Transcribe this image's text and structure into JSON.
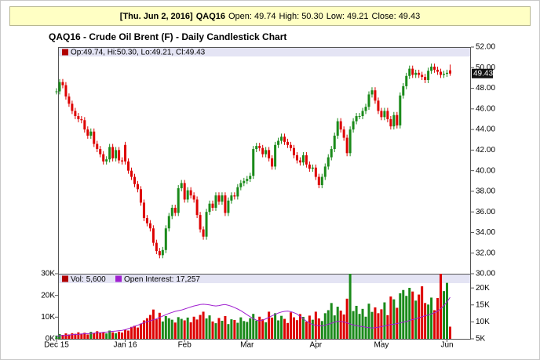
{
  "header": {
    "date": "[Thu. Jun 2, 2016]",
    "symbol": "QAQ16",
    "fields": [
      {
        "label": "Open:",
        "value": "49.74"
      },
      {
        "label": "High:",
        "value": "50.30"
      },
      {
        "label": "Low:",
        "value": "49.21"
      },
      {
        "label": "Close:",
        "value": "49.43"
      }
    ]
  },
  "chart_data": {
    "type": "candlestick",
    "title": "QAQ16 - Crude Oil Brent (F) - Daily Candlestick Chart",
    "ohlc_legend": "Op:49.74, Hi:50.30, Lo:49.21, Cl:49.43",
    "last_label": "49.43",
    "legend_color": "#b00000",
    "up_color": "#1a8a1a",
    "down_color": "#dd0000",
    "categories": [
      "Dec 15",
      null,
      null,
      null,
      null,
      null,
      null,
      null,
      null,
      null,
      null,
      null,
      null,
      null,
      null,
      null,
      null,
      null,
      null,
      null,
      null,
      null,
      "Jan 16",
      null,
      null,
      null,
      null,
      null,
      null,
      null,
      null,
      null,
      null,
      null,
      null,
      null,
      null,
      null,
      null,
      null,
      null,
      "Feb",
      null,
      null,
      null,
      null,
      null,
      null,
      null,
      null,
      null,
      null,
      null,
      null,
      null,
      null,
      null,
      null,
      null,
      null,
      null,
      "Mar",
      null,
      null,
      null,
      null,
      null,
      null,
      null,
      null,
      null,
      null,
      null,
      null,
      null,
      null,
      null,
      null,
      null,
      null,
      null,
      null,
      null,
      "Apr",
      null,
      null,
      null,
      null,
      null,
      null,
      null,
      null,
      null,
      null,
      null,
      null,
      null,
      null,
      null,
      null,
      null,
      null,
      null,
      null,
      "May",
      null,
      null,
      null,
      null,
      null,
      null,
      null,
      null,
      null,
      null,
      null,
      null,
      null,
      null,
      null,
      null,
      null,
      null,
      null,
      null,
      "Jun",
      null
    ],
    "open": [
      47.7,
      47.7,
      48.6,
      48.3,
      47.2,
      46.5,
      45.8,
      45.3,
      45.0,
      44.9,
      44.0,
      43.4,
      43.8,
      42.6,
      42.1,
      41.6,
      40.9,
      41.1,
      42.3,
      41.2,
      42.0,
      41.0,
      42.5,
      40.9,
      40.0,
      39.4,
      38.7,
      38.2,
      36.9,
      35.4,
      34.9,
      34.4,
      33.0,
      32.2,
      31.8,
      32.3,
      34.4,
      35.6,
      36.4,
      35.9,
      38.3,
      38.8,
      37.2,
      38.1,
      37.6,
      37.2,
      35.7,
      34.3,
      33.6,
      36.0,
      36.8,
      36.4,
      37.6,
      37.0,
      37.6,
      35.9,
      37.1,
      37.6,
      37.5,
      38.4,
      38.8,
      39.0,
      39.2,
      39.5,
      42.1,
      42.4,
      42.2,
      41.6,
      42.0,
      41.2,
      40.4,
      42.5,
      42.9,
      43.3,
      42.8,
      42.5,
      42.2,
      41.5,
      41.0,
      40.8,
      41.5,
      40.6,
      40.2,
      40.3,
      39.4,
      38.6,
      39.4,
      40.4,
      41.3,
      42.1,
      43.4,
      44.8,
      44.0,
      43.2,
      41.7,
      44.0,
      44.8,
      45.3,
      45.3,
      45.8,
      46.2,
      47.4,
      47.8,
      46.8,
      45.8,
      45.2,
      45.8,
      45.0,
      44.3,
      45.4,
      44.4,
      47.3,
      48.2,
      49.2,
      49.9,
      49.3,
      49.5,
      49.3,
      49.1,
      48.8,
      49.7,
      50.1,
      49.8,
      49.6,
      49.3,
      49.4,
      49.74
    ],
    "high": [
      48.0,
      48.9,
      48.9,
      48.6,
      47.5,
      46.8,
      46.1,
      45.6,
      45.3,
      45.2,
      44.3,
      44.1,
      44.1,
      42.9,
      42.4,
      41.9,
      41.4,
      42.6,
      42.6,
      42.3,
      42.3,
      41.3,
      42.8,
      41.2,
      40.3,
      39.7,
      39.0,
      38.5,
      37.2,
      35.7,
      35.2,
      34.7,
      33.3,
      32.5,
      32.6,
      34.7,
      35.9,
      36.7,
      36.7,
      38.6,
      39.1,
      39.1,
      38.4,
      38.4,
      37.9,
      37.5,
      36.0,
      34.6,
      36.3,
      37.1,
      37.1,
      37.9,
      37.9,
      37.9,
      37.9,
      37.4,
      37.9,
      37.9,
      38.7,
      39.1,
      39.3,
      39.5,
      39.8,
      42.4,
      42.7,
      42.7,
      42.5,
      42.3,
      42.3,
      41.5,
      42.8,
      43.2,
      43.6,
      43.6,
      43.1,
      42.8,
      42.5,
      41.8,
      41.3,
      41.8,
      41.8,
      40.9,
      40.6,
      40.6,
      39.7,
      39.7,
      40.7,
      41.6,
      42.4,
      43.7,
      45.1,
      45.1,
      44.3,
      43.5,
      44.3,
      45.1,
      45.6,
      45.6,
      46.1,
      46.5,
      47.7,
      48.1,
      48.1,
      47.1,
      46.1,
      46.1,
      46.1,
      45.3,
      45.7,
      45.7,
      47.6,
      48.5,
      49.5,
      50.2,
      50.2,
      49.8,
      49.8,
      49.6,
      49.4,
      50.0,
      50.4,
      50.4,
      50.1,
      49.9,
      49.7,
      49.8,
      50.3
    ],
    "low": [
      47.4,
      47.4,
      48.0,
      46.9,
      46.2,
      45.5,
      45.0,
      44.7,
      44.6,
      43.7,
      43.1,
      43.1,
      42.3,
      41.8,
      41.3,
      40.6,
      40.6,
      40.8,
      40.9,
      40.9,
      40.7,
      40.6,
      40.6,
      39.7,
      39.1,
      38.4,
      37.9,
      36.6,
      35.1,
      34.6,
      34.1,
      32.7,
      31.9,
      31.5,
      31.5,
      32.0,
      34.1,
      35.3,
      35.6,
      35.6,
      38.0,
      36.9,
      36.9,
      37.3,
      36.9,
      35.4,
      34.0,
      33.3,
      33.3,
      35.7,
      36.1,
      36.1,
      36.7,
      36.7,
      35.6,
      35.6,
      36.8,
      37.2,
      37.2,
      38.1,
      38.5,
      38.7,
      38.9,
      39.2,
      41.8,
      41.9,
      41.3,
      41.3,
      40.9,
      40.1,
      40.1,
      42.2,
      42.6,
      42.5,
      42.2,
      41.9,
      41.2,
      40.7,
      40.5,
      40.5,
      40.3,
      39.9,
      39.9,
      39.1,
      38.3,
      38.3,
      39.1,
      40.1,
      41.0,
      41.8,
      43.1,
      43.7,
      42.9,
      41.4,
      41.4,
      43.7,
      44.5,
      45.0,
      45.0,
      45.5,
      45.9,
      47.1,
      46.5,
      45.5,
      44.9,
      44.9,
      44.7,
      44.0,
      44.0,
      44.1,
      44.1,
      47.0,
      47.9,
      48.9,
      49.0,
      49.0,
      49.0,
      48.8,
      48.5,
      48.5,
      49.4,
      49.5,
      49.3,
      49.0,
      49.0,
      49.1,
      49.21
    ],
    "close": [
      47.7,
      48.6,
      48.3,
      47.2,
      46.5,
      45.8,
      45.3,
      45.0,
      44.9,
      44.0,
      43.4,
      43.8,
      42.6,
      42.1,
      41.6,
      40.9,
      41.1,
      42.3,
      41.2,
      42.0,
      41.0,
      40.9,
      40.9,
      40.0,
      39.4,
      38.7,
      38.2,
      36.9,
      35.4,
      34.9,
      34.4,
      33.0,
      32.2,
      31.8,
      32.3,
      34.4,
      35.6,
      36.4,
      35.9,
      38.3,
      38.8,
      37.2,
      38.1,
      37.6,
      37.2,
      35.7,
      34.3,
      33.6,
      36.0,
      36.8,
      36.4,
      37.6,
      37.0,
      37.6,
      35.9,
      37.1,
      37.6,
      37.5,
      38.4,
      38.8,
      39.0,
      39.2,
      39.5,
      42.1,
      42.4,
      42.2,
      41.6,
      42.0,
      41.2,
      40.4,
      42.5,
      42.9,
      43.3,
      42.8,
      42.5,
      42.2,
      41.5,
      41.0,
      40.8,
      41.5,
      40.6,
      40.2,
      40.3,
      39.4,
      38.6,
      39.4,
      40.4,
      41.3,
      42.1,
      43.4,
      44.8,
      44.0,
      43.2,
      41.7,
      44.0,
      44.8,
      45.3,
      45.3,
      45.8,
      46.2,
      47.4,
      47.8,
      46.8,
      45.8,
      45.2,
      45.8,
      45.0,
      44.3,
      45.4,
      44.4,
      47.3,
      48.2,
      49.2,
      49.9,
      49.3,
      49.5,
      49.3,
      49.1,
      48.8,
      49.7,
      50.1,
      49.8,
      49.6,
      49.3,
      49.4,
      49.5,
      49.43
    ],
    "ylim": [
      30,
      52
    ],
    "yticks": [
      {
        "value": 30,
        "label": "30.00"
      },
      {
        "value": 32,
        "label": "32.00"
      },
      {
        "value": 34,
        "label": "34.00"
      },
      {
        "value": 36,
        "label": "36.00"
      },
      {
        "value": 38,
        "label": "38.00"
      },
      {
        "value": 40,
        "label": "40.00"
      },
      {
        "value": 42,
        "label": "42.00"
      },
      {
        "value": 44,
        "label": "44.00"
      },
      {
        "value": 46,
        "label": "46.00"
      },
      {
        "value": 48,
        "label": "48.00"
      },
      {
        "value": 50,
        "label": "50.00"
      },
      {
        "value": 52,
        "label": "52.00"
      }
    ],
    "volume": {
      "name": "Vol:",
      "legend_value": "5,600",
      "color": "#b00000",
      "values": [
        1500,
        2200,
        1800,
        2500,
        2000,
        2600,
        2300,
        3000,
        2400,
        2800,
        2000,
        3200,
        2700,
        3500,
        2900,
        3100,
        2500,
        3800,
        3000,
        2600,
        3300,
        2900,
        4200,
        3800,
        5500,
        6000,
        5200,
        7000,
        8500,
        9500,
        11000,
        13500,
        9000,
        12000,
        8000,
        10500,
        9500,
        8800,
        7500,
        10000,
        9200,
        8500,
        9800,
        7600,
        10200,
        8900,
        11000,
        12500,
        9400,
        10800,
        8000,
        7200,
        9600,
        8300,
        10500,
        6800,
        9000,
        8700,
        7400,
        9900,
        8200,
        7800,
        9500,
        11500,
        8400,
        10200,
        9000,
        7600,
        12500,
        9800,
        11800,
        8500,
        10600,
        9200,
        7300,
        12200,
        9900,
        8600,
        11400,
        10100,
        7900,
        10700,
        8800,
        12500,
        9400,
        8200,
        11800,
        13200,
        16500,
        10800,
        14800,
        13000,
        11200,
        18500,
        30000,
        12800,
        15200,
        11500,
        13800,
        10200,
        16200,
        12400,
        14500,
        11800,
        13600,
        16800,
        10900,
        19500,
        18200,
        14300,
        21000,
        22500,
        19800,
        23500,
        21800,
        17600,
        20400,
        24200,
        16500,
        15800,
        19000,
        13200,
        18800,
        30000,
        22000,
        25800,
        5600
      ],
      "ylim": [
        0,
        30000
      ],
      "yticks": [
        {
          "value": 0,
          "label": "0K"
        },
        {
          "value": 10000,
          "label": "10K"
        },
        {
          "value": 20000,
          "label": "20K"
        },
        {
          "value": 30000,
          "label": "30K"
        }
      ]
    },
    "open_interest": {
      "name": "Open Interest:",
      "legend_value": "17,257",
      "color": "#a020d0",
      "axis": "y2",
      "values": [
        5800,
        5900,
        6000,
        6000,
        6100,
        6200,
        6300,
        6300,
        6400,
        6500,
        6500,
        6600,
        6700,
        6800,
        6800,
        6900,
        7000,
        7100,
        7200,
        7300,
        7400,
        7500,
        7700,
        8000,
        8300,
        8700,
        9000,
        9400,
        9800,
        10100,
        10300,
        10600,
        10900,
        11300,
        11700,
        12100,
        12500,
        12800,
        13100,
        13300,
        13500,
        13800,
        14100,
        14400,
        14700,
        14900,
        15100,
        15200,
        15100,
        15000,
        14800,
        14700,
        14800,
        15000,
        15100,
        14900,
        14600,
        14200,
        13800,
        13300,
        12700,
        12100,
        11500,
        11000,
        10500,
        10300,
        10500,
        10900,
        11300,
        11800,
        12200,
        12600,
        12900,
        13100,
        13200,
        13000,
        12700,
        12300,
        11600,
        10900,
        10200,
        9600,
        9200,
        9000,
        8900,
        8800,
        9000,
        9300,
        9600,
        9900,
        10200,
        10100,
        10000,
        9700,
        9400,
        9100,
        8900,
        8700,
        8600,
        8400,
        8300,
        8200,
        8300,
        8400,
        8600,
        8800,
        9000,
        9200,
        9300,
        9500,
        9700,
        9900,
        10100,
        10400,
        10700,
        10900,
        11200,
        11500,
        11800,
        12000,
        12300,
        12700,
        13200,
        13900,
        14800,
        15900,
        17257
      ],
      "y2lim": [
        5000,
        24200
      ],
      "y2ticks": [
        {
          "value": 5000,
          "label": "5K"
        },
        {
          "value": 10000,
          "label": "10K"
        },
        {
          "value": 15000,
          "label": "15K"
        },
        {
          "value": 20000,
          "label": "20K"
        }
      ]
    }
  }
}
